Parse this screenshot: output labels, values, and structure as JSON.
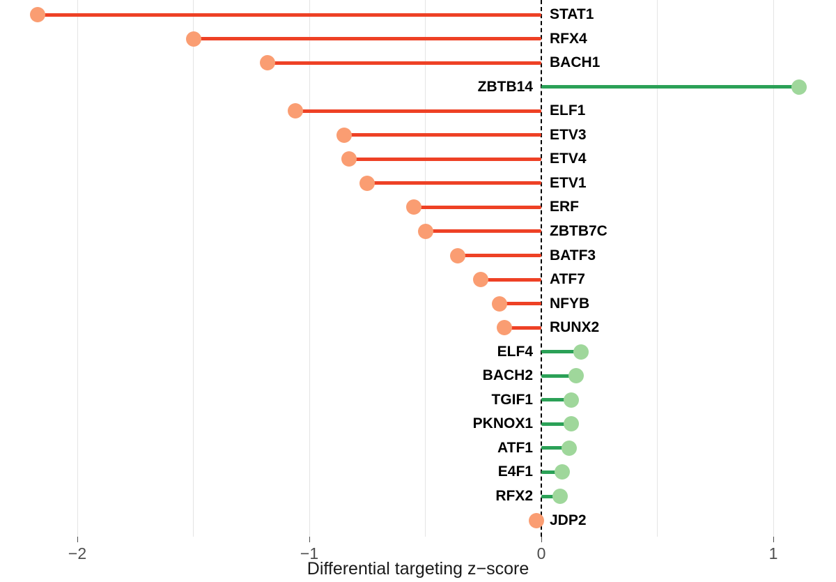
{
  "figure": {
    "background": "#ffffff"
  },
  "axis": {
    "title": "Differential targeting z−score",
    "ticks": [
      {
        "value": -2,
        "label": "−2"
      },
      {
        "value": -1,
        "label": "−1"
      },
      {
        "value": 0,
        "label": "0"
      },
      {
        "value": 1,
        "label": "1"
      }
    ],
    "gridline_values": [
      -2,
      -1.5,
      -1,
      -0.5,
      0.5,
      1
    ],
    "zero_line_value": 0
  },
  "colors": {
    "negative_stem": "#ee4125",
    "negative_dot": "#fa9d72",
    "positive_stem": "#2ba157",
    "positive_dot": "#9fd79b",
    "gridline": "#e4e4e4",
    "zero_line": "#000000",
    "tick": "#4d4d4d",
    "tick_label": "#4d4d4d",
    "gene_label": "#000000"
  },
  "chart_data": {
    "type": "lollipop",
    "orientation": "horizontal",
    "title": "",
    "xlabel": "Differential targeting z−score",
    "ylabel": "",
    "xlim": [
      -2.33,
      1.27
    ],
    "grid": "vertical, every 0.5, light gray; dashed black line at 0",
    "legend": "none",
    "categories": [
      "STAT1",
      "RFX4",
      "BACH1",
      "ZBTB14",
      "ELF1",
      "ETV3",
      "ETV4",
      "ETV1",
      "ERF",
      "ZBTB7C",
      "BATF3",
      "ATF7",
      "NFYB",
      "RUNX2",
      "ELF4",
      "BACH2",
      "TGIF1",
      "PKNOX1",
      "ATF1",
      "E4F1",
      "RFX2",
      "JDP2"
    ],
    "values": [
      -2.17,
      -1.5,
      -1.18,
      1.11,
      -1.06,
      -0.85,
      -0.83,
      -0.75,
      -0.55,
      -0.5,
      -0.36,
      -0.26,
      -0.18,
      -0.16,
      0.17,
      0.15,
      0.13,
      0.13,
      0.12,
      0.09,
      0.08,
      -0.02
    ],
    "series_note": "sorted by absolute z-score descending; negative = orange (left of zero), positive = green (right of zero)"
  }
}
